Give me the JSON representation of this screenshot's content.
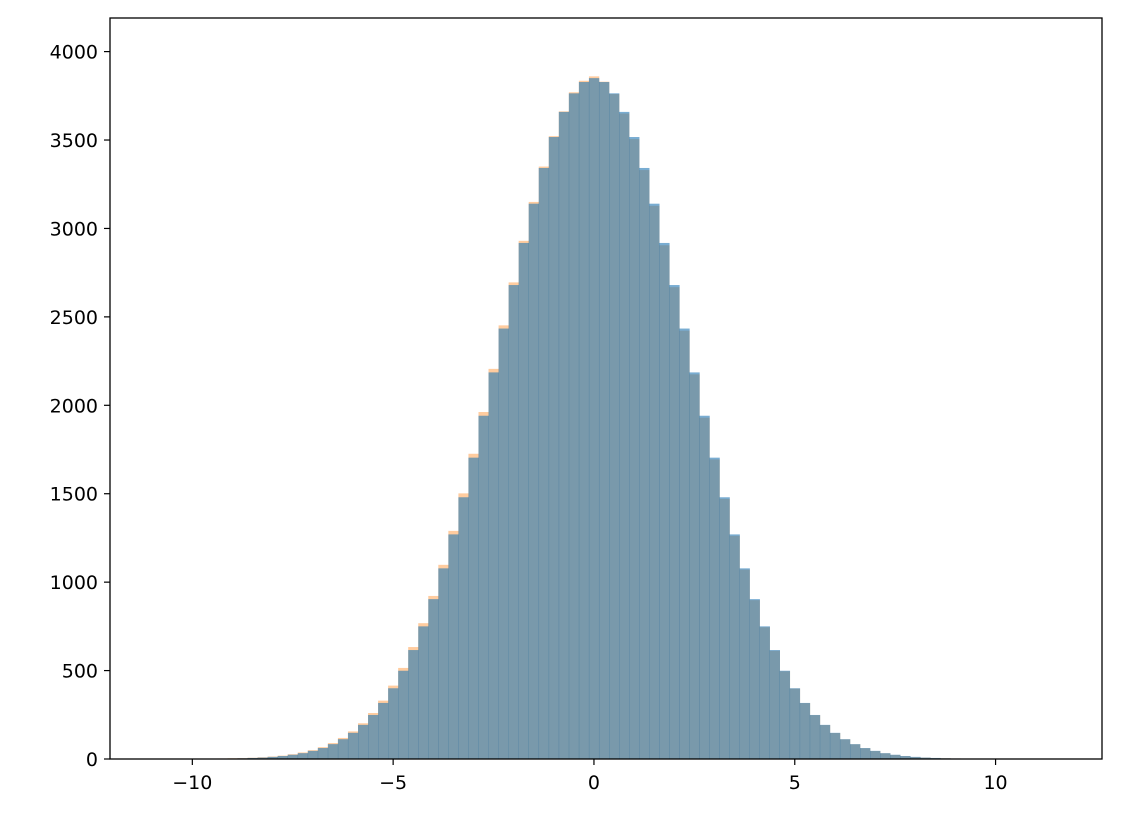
{
  "chart_data": {
    "type": "bar",
    "title": "",
    "xlabel": "",
    "ylabel": "",
    "xlim": [
      -12.05,
      12.65
    ],
    "ylim": [
      0,
      4190
    ],
    "grid": false,
    "xticks": [
      -10,
      -5,
      0,
      5,
      10
    ],
    "xtick_labels": [
      "−10",
      "−5",
      "0",
      "5",
      "10"
    ],
    "yticks": [
      0,
      500,
      1000,
      1500,
      2000,
      2500,
      3000,
      3500,
      4000
    ],
    "ytick_labels": [
      "0",
      "500",
      "1000",
      "1500",
      "2000",
      "2500",
      "3000",
      "3500",
      "4000"
    ],
    "bin_width": 0.25,
    "bin_centers": [
      -11,
      -10.75,
      -10.5,
      -10.25,
      -10,
      -9.75,
      -9.5,
      -9.25,
      -9,
      -8.75,
      -8.5,
      -8.25,
      -8,
      -7.75,
      -7.5,
      -7.25,
      -7,
      -6.75,
      -6.5,
      -6.25,
      -6,
      -5.75,
      -5.5,
      -5.25,
      -5,
      -4.75,
      -4.5,
      -4.25,
      -4,
      -3.75,
      -3.5,
      -3.25,
      -3,
      -2.75,
      -2.5,
      -2.25,
      -2,
      -1.75,
      -1.5,
      -1.25,
      -1,
      -0.75,
      -0.5,
      -0.25,
      0,
      0.25,
      0.5,
      0.75,
      1,
      1.25,
      1.5,
      1.75,
      2,
      2.25,
      2.5,
      2.75,
      3,
      3.25,
      3.5,
      3.75,
      4,
      4.25,
      4.5,
      4.75,
      5,
      5.25,
      5.5,
      5.75,
      6,
      6.25,
      6.5,
      6.75,
      7,
      7.25,
      7.5,
      7.75,
      8,
      8.25,
      8.5,
      8.75,
      9,
      9.25,
      9.5,
      9.75,
      10,
      10.25,
      10.5,
      10.75,
      11,
      11.25
    ],
    "series": [
      {
        "color": "#1f77b4",
        "alpha": 0.6,
        "values": [
          0,
          0,
          0,
          0,
          0,
          1,
          1,
          2,
          3,
          4,
          6,
          8,
          12,
          17,
          24,
          33,
          46,
          62,
          84,
          112,
          148,
          193,
          249,
          317,
          400,
          499,
          616,
          750,
          904,
          1078,
          1270,
          1480,
          1704,
          1941,
          2186,
          2434,
          2680,
          2918,
          3140,
          3342,
          3517,
          3659,
          3764,
          3828,
          3850,
          3828,
          3764,
          3659,
          3517,
          3342,
          3140,
          2918,
          2680,
          2434,
          2186,
          1941,
          1704,
          1480,
          1270,
          1078,
          904,
          750,
          616,
          499,
          400,
          317,
          249,
          193,
          148,
          112,
          84,
          62,
          46,
          33,
          24,
          17,
          12,
          8,
          6,
          4,
          3,
          2,
          1,
          1,
          0,
          0,
          0,
          0,
          0,
          0
        ]
      },
      {
        "color": "#ff7f0e",
        "alpha": 0.4,
        "values": [
          0,
          0,
          0,
          0,
          1,
          1,
          2,
          3,
          4,
          5,
          7,
          10,
          14,
          19,
          27,
          37,
          50,
          67,
          90,
          119,
          156,
          202,
          260,
          330,
          415,
          515,
          633,
          768,
          922,
          1098,
          1290,
          1502,
          1726,
          1962,
          2206,
          2452,
          2695,
          2930,
          3150,
          3350,
          3522,
          3662,
          3770,
          3835,
          3860,
          3830,
          3760,
          3650,
          3505,
          3330,
          3128,
          2905,
          2668,
          2422,
          2175,
          1930,
          1694,
          1471,
          1262,
          1071,
          898,
          745,
          612,
          496,
          398,
          316,
          248,
          192,
          147,
          111,
          83,
          61,
          45,
          32,
          23,
          16,
          11,
          8,
          5,
          4,
          3,
          2,
          1,
          1,
          0,
          0,
          0,
          0,
          0,
          0
        ]
      }
    ]
  }
}
